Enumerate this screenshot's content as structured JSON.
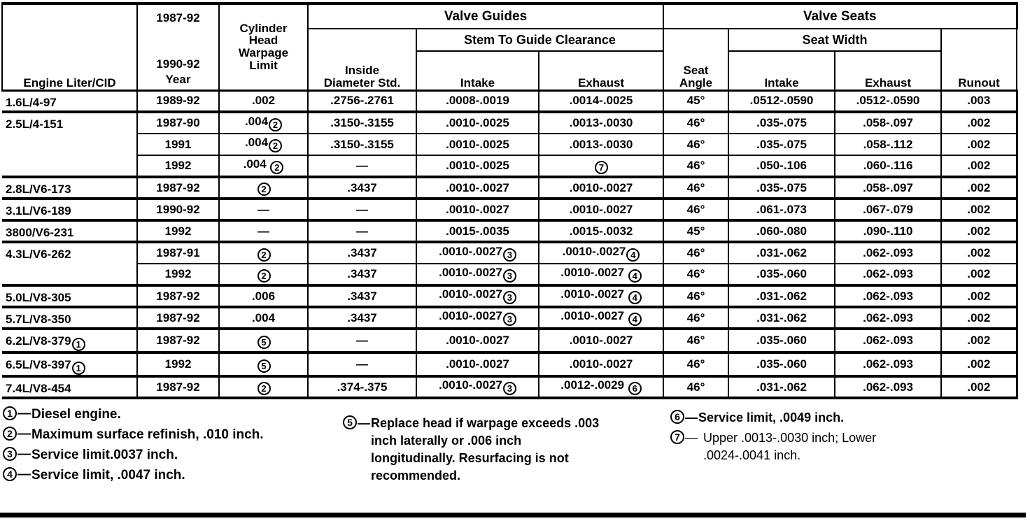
{
  "table": {
    "header": {
      "engine": "Engine Liter/CID",
      "year_lines": [
        "1987-92",
        "1990-92",
        "Year"
      ],
      "warpage": "Cylinder Head Warpage Limit",
      "valve_guides": "Valve Guides",
      "inside_diameter": "Inside Diameter Std.",
      "stem_to_guide": "Stem To Guide Clearance",
      "intake_guides": "Intake",
      "exhaust_guides": "Exhaust",
      "valve_seats": "Valve Seats",
      "seat_angle": "Seat Angle",
      "seat_width": "Seat Width",
      "intake_seats": "Intake",
      "exhaust_seats": "Exhaust",
      "runout": "Runout"
    },
    "rows": [
      {
        "engine": "1.6L/4-97",
        "rowspan": 1,
        "group_start": true,
        "cells": [
          "1989-92",
          ".002",
          ".2756-.2761",
          ".0008-.0019",
          ".0014-.0025",
          "45°",
          ".0512-.0590",
          ".0512-.0590",
          ".003"
        ]
      },
      {
        "engine": "2.5L/4-151",
        "rowspan": 3,
        "group_start": true,
        "cells": [
          "1987-90",
          ".004②",
          ".3150-.3155",
          ".0010-.0025",
          ".0013-.0030",
          "46°",
          ".035-.075",
          ".058-.097",
          ".002"
        ]
      },
      {
        "group_start": false,
        "cells": [
          "1991",
          ".004②",
          ".3150-.3155",
          ".0010-.0025",
          ".0013-.0030",
          "46°",
          ".035-.075",
          ".058-.112",
          ".002"
        ]
      },
      {
        "group_start": false,
        "cells": [
          "1992",
          ".004 ②",
          "—",
          ".0010-.0025",
          "⑦",
          "46°",
          ".050-.106",
          ".060-.116",
          ".002"
        ]
      },
      {
        "engine": "2.8L/V6-173",
        "rowspan": 1,
        "group_start": true,
        "cells": [
          "1987-92",
          "②",
          ".3437",
          ".0010-.0027",
          ".0010-.0027",
          "46°",
          ".035-.075",
          ".058-.097",
          ".002"
        ]
      },
      {
        "engine": "3.1L/V6-189",
        "rowspan": 1,
        "group_start": true,
        "cells": [
          "1990-92",
          "—",
          "—",
          ".0010-.0027",
          ".0010-.0027",
          "46°",
          ".061-.073",
          ".067-.079",
          ".002"
        ]
      },
      {
        "engine": "3800/V6-231",
        "rowspan": 1,
        "group_start": true,
        "cells": [
          "1992",
          "—",
          "—",
          ".0015-.0035",
          ".0015-.0032",
          "45°",
          ".060-.080",
          ".090-.110",
          ".002"
        ]
      },
      {
        "engine": "4.3L/V6-262",
        "rowspan": 2,
        "group_start": true,
        "cells": [
          "1987-91",
          "②",
          ".3437",
          ".0010-.0027③",
          ".0010-.0027④",
          "46°",
          ".031-.062",
          ".062-.093",
          ".002"
        ]
      },
      {
        "group_start": false,
        "cells": [
          "1992",
          "②",
          ".3437",
          ".0010-.0027③",
          ".0010-.0027 ④",
          "46°",
          ".035-.060",
          ".062-.093",
          ".002"
        ]
      },
      {
        "engine": "5.0L/V8-305",
        "rowspan": 1,
        "group_start": true,
        "cells": [
          "1987-92",
          ".006",
          ".3437",
          ".0010-.0027③",
          ".0010-.0027 ④",
          "46°",
          ".031-.062",
          ".062-.093",
          ".002"
        ]
      },
      {
        "engine": "5.7L/V8-350",
        "rowspan": 1,
        "group_start": true,
        "cells": [
          "1987-92",
          ".004",
          ".3437",
          ".0010-.0027③",
          ".0010-.0027 ④",
          "46°",
          ".031-.062",
          ".062-.093",
          ".002"
        ]
      },
      {
        "engine": "6.2L/V8-379①",
        "rowspan": 1,
        "group_start": true,
        "cells": [
          "1987-92",
          "⑤",
          "—",
          ".0010-.0027",
          ".0010-.0027",
          "46°",
          ".035-.060",
          ".062-.093",
          ".002"
        ]
      },
      {
        "engine": "6.5L/V8-397①",
        "rowspan": 1,
        "group_start": true,
        "cells": [
          "1992",
          "⑤",
          "—",
          ".0010-.0027",
          ".0010-.0027",
          "46°",
          ".035-.060",
          ".062-.093",
          ".002"
        ]
      },
      {
        "engine": "7.4L/V8-454",
        "rowspan": 1,
        "group_start": true,
        "cells": [
          "1987-92",
          "②",
          ".374-.375",
          ".0010-.0027③",
          ".0012-.0029 ⑥",
          "46°",
          ".031-.062",
          ".062-.093",
          ".002"
        ]
      }
    ]
  },
  "footnotes": {
    "col1": [
      {
        "num": "1",
        "dash": "—",
        "text": "Diesel engine."
      },
      {
        "num": "2",
        "dash": "—",
        "text": "Maximum surface refinish, .010 inch."
      },
      {
        "num": "3",
        "dash": "—",
        "text": "Service limit.0037 inch."
      },
      {
        "num": "4",
        "dash": "—",
        "text": "Service limit, .0047 inch."
      }
    ],
    "col2": [
      {
        "num": "5",
        "dash": "—",
        "text": "Replace head if warpage exceeds .003 inch laterally or .006 inch longitudinally. Resurfacing is not recommended."
      }
    ],
    "col3": [
      {
        "num": "6",
        "dash": "—",
        "text": "Service limit, .0049 inch."
      },
      {
        "num": "7",
        "dash": "—",
        "text": "Upper .0013-.0030 inch; Lower .0024-.0041 inch."
      }
    ]
  },
  "colors": {
    "ink": "#000000",
    "paper": "#ffffff"
  }
}
